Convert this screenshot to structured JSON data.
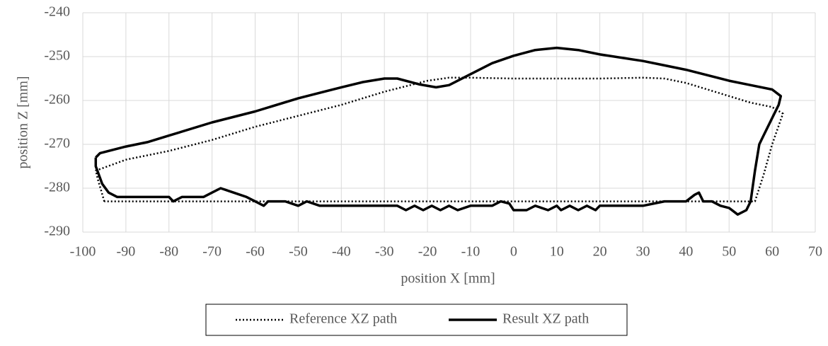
{
  "chart_data": {
    "type": "line",
    "xlabel": "position X [mm]",
    "ylabel": "position Z [mm]",
    "xlim": [
      -100,
      70
    ],
    "xticks": [
      -100,
      -90,
      -80,
      -70,
      -60,
      -50,
      -40,
      -30,
      -20,
      -10,
      0,
      10,
      20,
      30,
      40,
      50,
      60,
      70
    ],
    "ylim": [
      -290,
      -240
    ],
    "yticks": [
      -240,
      -250,
      -260,
      -270,
      -280,
      -290
    ],
    "grid": true,
    "legend": "bottom",
    "series": [
      {
        "name": "Reference XZ path",
        "color": "#000000",
        "style": "dotted",
        "x": [
          -95,
          -96.5,
          -97,
          -90,
          -80,
          -70,
          -60,
          -50,
          -40,
          -30,
          -20,
          -15,
          -10,
          0,
          10,
          20,
          30,
          35,
          40,
          45,
          50,
          55,
          60,
          62.5,
          60,
          58,
          56,
          40,
          20,
          0,
          -20,
          -40,
          -60,
          -80,
          -95
        ],
        "values": [
          -283,
          -278,
          -276,
          -273.5,
          -271.5,
          -269,
          -266,
          -263.5,
          -261,
          -258,
          -255.5,
          -254.8,
          -254.8,
          -255,
          -255,
          -255,
          -254.8,
          -255,
          -256,
          -257.5,
          -259,
          -260.5,
          -261.5,
          -263,
          -270,
          -277,
          -283,
          -283,
          -283,
          -283,
          -283,
          -283,
          -283,
          -283,
          -283
        ]
      },
      {
        "name": "Result XZ path",
        "color": "#000000",
        "style": "solid",
        "x": [
          -97,
          -96,
          -90,
          -85,
          -80,
          -70,
          -60,
          -50,
          -40,
          -35,
          -30,
          -27,
          -22,
          -18,
          -15,
          -10,
          -5,
          0,
          5,
          10,
          15,
          20,
          30,
          35,
          40,
          50,
          55,
          60,
          62,
          61.5,
          60,
          58,
          57,
          56,
          55,
          54,
          52,
          50,
          48,
          46,
          44,
          43,
          42,
          40,
          35,
          30,
          20,
          19,
          17,
          15,
          13,
          11,
          10,
          8,
          5,
          3,
          0,
          -1,
          -3,
          -5,
          -10,
          -13,
          -15,
          -17,
          -19,
          -21,
          -23,
          -25,
          -27,
          -45,
          -48,
          -50,
          -53,
          -57,
          -58,
          -60,
          -62,
          -65,
          -68,
          -70,
          -72,
          -77,
          -79,
          -80,
          -92,
          -93,
          -94,
          -95.5,
          -97,
          -97
        ],
        "values": [
          -273,
          -272,
          -270.5,
          -269.5,
          -268,
          -265,
          -262.5,
          -259.5,
          -257,
          -255.8,
          -255,
          -255,
          -256.3,
          -257,
          -256.5,
          -254,
          -251.5,
          -249.8,
          -248.5,
          -248,
          -248.5,
          -249.5,
          -251,
          -252,
          -253,
          -255.5,
          -256.5,
          -257.5,
          -259,
          -261,
          -264,
          -268,
          -270,
          -276,
          -283,
          -285,
          -286,
          -284.5,
          -284,
          -283,
          -283,
          -281,
          -281.5,
          -283,
          -283,
          -284,
          -284,
          -285,
          -284,
          -285,
          -284,
          -285,
          -284,
          -285,
          -284,
          -285,
          -285,
          -283.5,
          -283,
          -284,
          -284,
          -285,
          -284,
          -285,
          -284,
          -285,
          -284,
          -285,
          -284,
          -284,
          -283,
          -284,
          -283,
          -283,
          -284,
          -283,
          -282,
          -281,
          -280,
          -281,
          -282,
          -282,
          -283,
          -282,
          -282,
          -281.5,
          -281,
          -279,
          -275,
          -273
        ]
      }
    ]
  }
}
